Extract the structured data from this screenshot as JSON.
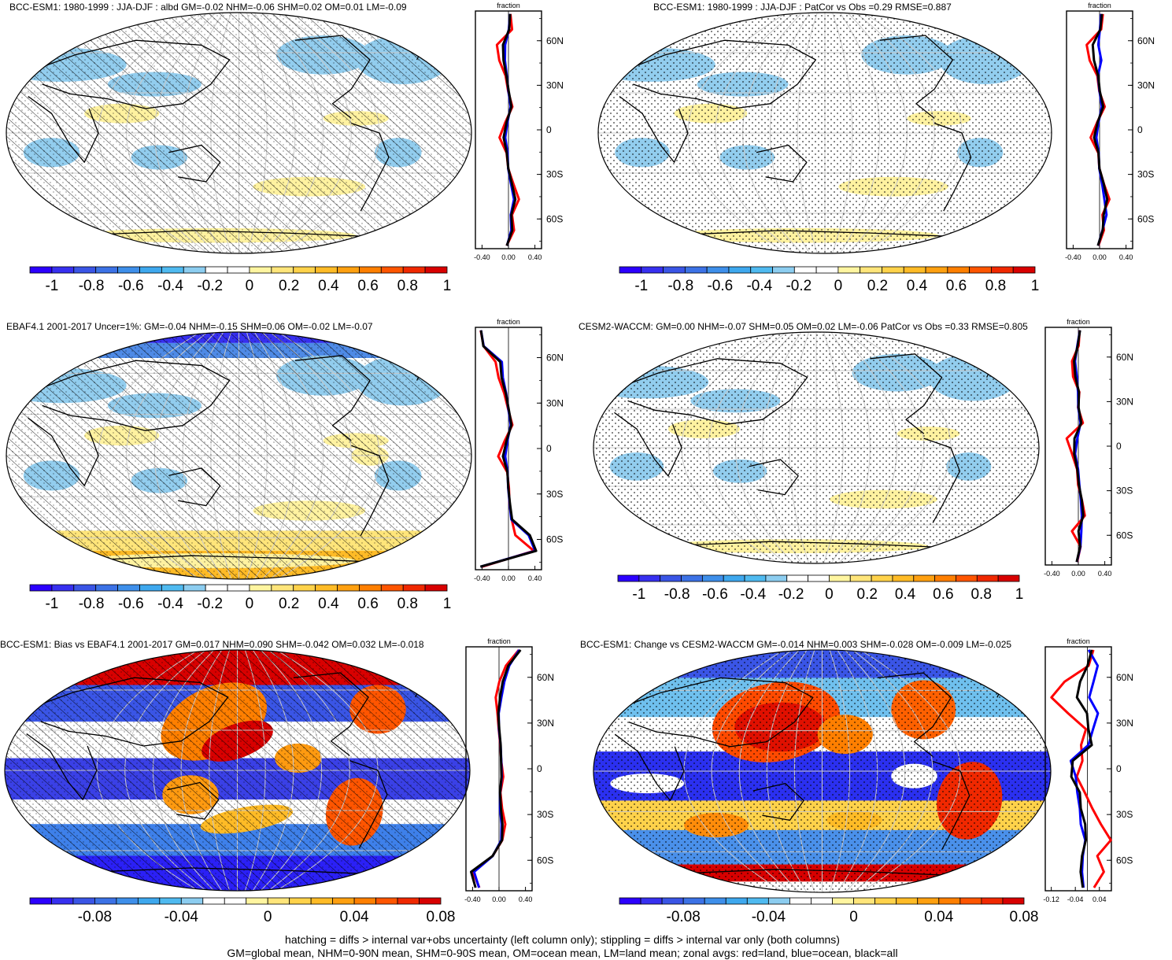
{
  "chart_data": [
    {
      "type": "heatmap",
      "id": "p1",
      "title": "BCC-ESM1: 1980-1999 : JJA-DJF : albd GM=-0.02 NHM=-0.06 SHM=0.02 OM=0.01 LM=-0.09",
      "overlay": "hatching",
      "colorbar": {
        "ticks": [
          "-1",
          "-0.8",
          "-0.6",
          "-0.4",
          "-0.2",
          "0",
          "0.2",
          "0.4",
          "0.6",
          "0.8",
          "1"
        ]
      },
      "zonal": {
        "title": "fraction",
        "xticks": [
          "-0.40",
          "0.00",
          "0.40"
        ],
        "yticks": [
          "60N",
          "30N",
          "0",
          "30S",
          "60S"
        ],
        "xlim": [
          -0.5,
          0.5
        ],
        "series": [
          {
            "color": "#ff0000",
            "x": [
              0.03,
              0.05,
              -0.18,
              -0.14,
              -0.04,
              0.0,
              0.06,
              -0.05,
              -0.14,
              -0.03,
              0.0,
              0.08,
              0.16,
              0.05,
              0.08,
              -0.03
            ]
          },
          {
            "color": "#0000ff",
            "x": [
              0.02,
              0.0,
              -0.05,
              -0.05,
              -0.02,
              0.0,
              0.03,
              -0.02,
              -0.05,
              -0.01,
              0.0,
              0.04,
              0.08,
              0.03,
              0.04,
              -0.02
            ]
          },
          {
            "color": "#000000",
            "x": [
              0.02,
              0.01,
              -0.08,
              -0.07,
              -0.03,
              0.0,
              0.04,
              -0.03,
              -0.07,
              -0.02,
              0.0,
              0.05,
              0.1,
              0.04,
              0.06,
              -0.02
            ]
          }
        ]
      }
    },
    {
      "type": "heatmap",
      "id": "p2",
      "title": "BCC-ESM1: 1980-1999 : JJA-DJF : PatCor vs Obs =0.29 RMSE=0.887",
      "overlay": "stippling",
      "colorbar": {
        "ticks": [
          "-1",
          "-0.8",
          "-0.6",
          "-0.4",
          "-0.2",
          "0",
          "0.2",
          "0.4",
          "0.6",
          "0.8",
          "1"
        ]
      },
      "zonal": {
        "title": "fraction",
        "xticks": [
          "-0.40",
          "0.00",
          "0.40"
        ],
        "yticks": [
          "60N",
          "30N",
          "0",
          "30S",
          "60S"
        ],
        "xlim": [
          -0.5,
          0.5
        ],
        "series": [
          {
            "color": "#ff0000",
            "x": [
              0.05,
              0.02,
              -0.2,
              -0.15,
              -0.03,
              0.0,
              0.08,
              -0.04,
              -0.14,
              -0.02,
              0.0,
              0.07,
              0.15,
              0.04,
              0.06,
              -0.02
            ]
          },
          {
            "color": "#0000ff",
            "x": [
              0.02,
              0.0,
              -0.02,
              0.03,
              -0.02,
              0.0,
              0.03,
              -0.02,
              -0.05,
              -0.01,
              0.0,
              0.04,
              0.07,
              0.1,
              0.04,
              -0.02
            ]
          },
          {
            "color": "#000000",
            "x": [
              0.03,
              0.01,
              -0.1,
              -0.08,
              -0.02,
              0.0,
              0.05,
              -0.03,
              -0.08,
              -0.01,
              0.0,
              0.06,
              0.11,
              0.06,
              0.05,
              -0.02
            ]
          }
        ]
      }
    },
    {
      "type": "heatmap",
      "id": "p3",
      "title": "EBAF4.1 2001-2017 Uncer=1%: GM=-0.04 NHM=-0.15 SHM=0.06 OM=-0.02 LM=-0.07",
      "overlay": "hatching",
      "colorbar": {
        "ticks": [
          "-1",
          "-0.8",
          "-0.6",
          "-0.4",
          "-0.2",
          "0",
          "0.2",
          "0.4",
          "0.6",
          "0.8",
          "1"
        ]
      },
      "zonal": {
        "title": "fraction",
        "xticks": [
          "-0.40",
          "0.00",
          "0.40"
        ],
        "yticks": [
          "60N",
          "30N",
          "0",
          "30S",
          "60S"
        ],
        "xlim": [
          -0.5,
          0.5
        ],
        "series": [
          {
            "color": "#ff0000",
            "x": [
              -0.42,
              -0.38,
              -0.2,
              -0.15,
              -0.06,
              0.0,
              0.06,
              -0.06,
              -0.16,
              -0.02,
              0.01,
              0.02,
              0.05,
              0.1,
              0.38,
              -0.4
            ]
          },
          {
            "color": "#0000ff",
            "x": [
              -0.42,
              -0.38,
              -0.1,
              -0.08,
              -0.03,
              0.0,
              0.03,
              -0.02,
              -0.05,
              -0.01,
              0.0,
              0.02,
              0.04,
              0.3,
              0.4,
              -0.42
            ]
          },
          {
            "color": "#000000",
            "x": [
              -0.42,
              -0.38,
              -0.12,
              -0.1,
              -0.04,
              0.0,
              0.04,
              -0.03,
              -0.08,
              -0.01,
              0.0,
              0.02,
              0.05,
              0.32,
              0.42,
              -0.42
            ]
          }
        ]
      }
    },
    {
      "type": "heatmap",
      "id": "p4",
      "title": "CESM2-WACCM: GM=0.00 NHM=-0.07 SHM=0.05 OM=0.02 LM=-0.06 PatCor vs Obs =0.33 RMSE=0.805",
      "overlay": "stippling",
      "colorbar": {
        "ticks": [
          "-1",
          "-0.8",
          "-0.6",
          "-0.4",
          "-0.2",
          "0",
          "0.2",
          "0.4",
          "0.6",
          "0.8",
          "1"
        ]
      },
      "zonal": {
        "title": "fraction",
        "xticks": [
          "-0.40",
          "0.00",
          "0.40"
        ],
        "yticks": [
          "60N",
          "30N",
          "0",
          "30S",
          "60S"
        ],
        "xlim": [
          -0.5,
          0.5
        ],
        "series": [
          {
            "color": "#ff0000",
            "x": [
              0.02,
              0.0,
              -0.1,
              -0.08,
              0.02,
              0.0,
              0.07,
              -0.18,
              -0.1,
              -0.02,
              0.0,
              0.06,
              0.1,
              -0.1,
              0.03,
              -0.02
            ]
          },
          {
            "color": "#0000ff",
            "x": [
              0.02,
              -0.02,
              -0.05,
              -0.02,
              0.0,
              0.0,
              0.03,
              -0.02,
              -0.05,
              0.0,
              0.02,
              0.04,
              0.05,
              0.04,
              0.03,
              -0.02
            ]
          },
          {
            "color": "#000000",
            "x": [
              0.02,
              -0.01,
              -0.06,
              -0.04,
              0.01,
              0.0,
              0.04,
              -0.06,
              -0.06,
              -0.01,
              0.01,
              0.05,
              0.07,
              0.0,
              0.03,
              -0.02
            ]
          }
        ]
      }
    },
    {
      "type": "heatmap",
      "id": "p5",
      "title": "BCC-ESM1: Bias vs EBAF4.1 2001-2017 GM=0.017 NHM=0.090 SHM=-0.042 OM=0.032 LM=-0.018",
      "overlay": "hatching",
      "colorbar": {
        "ticks": [
          "-0.08",
          "-0.04",
          "0",
          "0.04",
          "0.08"
        ]
      },
      "zonal": {
        "title": "fraction",
        "xticks": [
          "-0.40",
          "0.00",
          "0.40"
        ],
        "yticks": [
          "60N",
          "30N",
          "0",
          "30S",
          "60S"
        ],
        "xlim": [
          -0.5,
          0.5
        ],
        "series": [
          {
            "color": "#ff0000",
            "x": [
              0.3,
              0.1,
              0.0,
              -0.05,
              -0.02,
              0.0,
              0.02,
              0.03,
              0.06,
              0.02,
              0.05,
              0.1,
              0.05,
              -0.1,
              -0.4,
              -0.3
            ]
          },
          {
            "color": "#0000ff",
            "x": [
              0.3,
              0.15,
              0.08,
              0.04,
              0.0,
              0.0,
              0.02,
              0.03,
              0.04,
              0.02,
              0.02,
              0.04,
              0.03,
              -0.1,
              -0.38,
              -0.3
            ]
          },
          {
            "color": "#000000",
            "x": [
              0.32,
              0.14,
              0.06,
              0.02,
              -0.01,
              0.0,
              0.02,
              0.03,
              0.04,
              0.02,
              0.03,
              0.05,
              0.04,
              -0.1,
              -0.42,
              -0.35
            ]
          }
        ]
      }
    },
    {
      "type": "heatmap",
      "id": "p6",
      "title": "BCC-ESM1: Change vs CESM2-WACCM GM=-0.014 NHM=0.003 SHM=-0.028 OM=-0.009 LM=-0.025",
      "overlay": "stippling",
      "colorbar": {
        "ticks": [
          "-0.08",
          "-0.04",
          "0",
          "0.04",
          "0.08"
        ]
      },
      "zonal": {
        "title": "fraction",
        "xticks": [
          "-0.12",
          "-0.04",
          "0.04"
        ],
        "yticks": [
          "60N",
          "30N",
          "0",
          "30S",
          "60S"
        ],
        "xlim": [
          -0.14,
          0.08
        ],
        "series": [
          {
            "color": "#ff0000",
            "x": [
              0.02,
              0.0,
              -0.08,
              -0.12,
              -0.06,
              0.0,
              -0.02,
              -0.02,
              -0.04,
              -0.01,
              0.02,
              0.05,
              0.08,
              0.03,
              0.05,
              0.02
            ]
          },
          {
            "color": "#0000ff",
            "x": [
              0.0,
              0.03,
              0.02,
              0.01,
              0.04,
              0.02,
              0.0,
              -0.06,
              -0.04,
              -0.03,
              -0.02,
              -0.02,
              -0.01,
              -0.02,
              -0.02,
              -0.01
            ]
          },
          {
            "color": "#000000",
            "x": [
              0.01,
              0.0,
              -0.02,
              -0.03,
              0.0,
              0.0,
              0.01,
              -0.05,
              -0.05,
              -0.02,
              -0.02,
              -0.01,
              -0.01,
              -0.02,
              -0.02,
              -0.01
            ]
          }
        ]
      }
    }
  ],
  "footer": {
    "line1": "hatching = diffs > internal var+obs uncertainty (left column only); stippling = diffs > internal var only (both columns)",
    "line2": "GM=global mean, NHM=0-90N mean, SHM=0-90S mean, OM=ocean mean, LM=land mean; zonal avgs: red=land, blue=ocean, black=all"
  },
  "colors": {
    "blues": [
      "#2e00ff",
      "#3a3fe6",
      "#3f68e0",
      "#3f8be6",
      "#3fa9ec",
      "#63c2ee",
      "#9ed4f1"
    ],
    "yellows": [
      "#fff6a8",
      "#ffe27a",
      "#ffc93c",
      "#ffab1e",
      "#ff8c0a",
      "#ff5a00",
      "#f01e00",
      "#d40000"
    ],
    "pale_blue": "#92cdee",
    "pale_yellow": "#fff2a0"
  }
}
